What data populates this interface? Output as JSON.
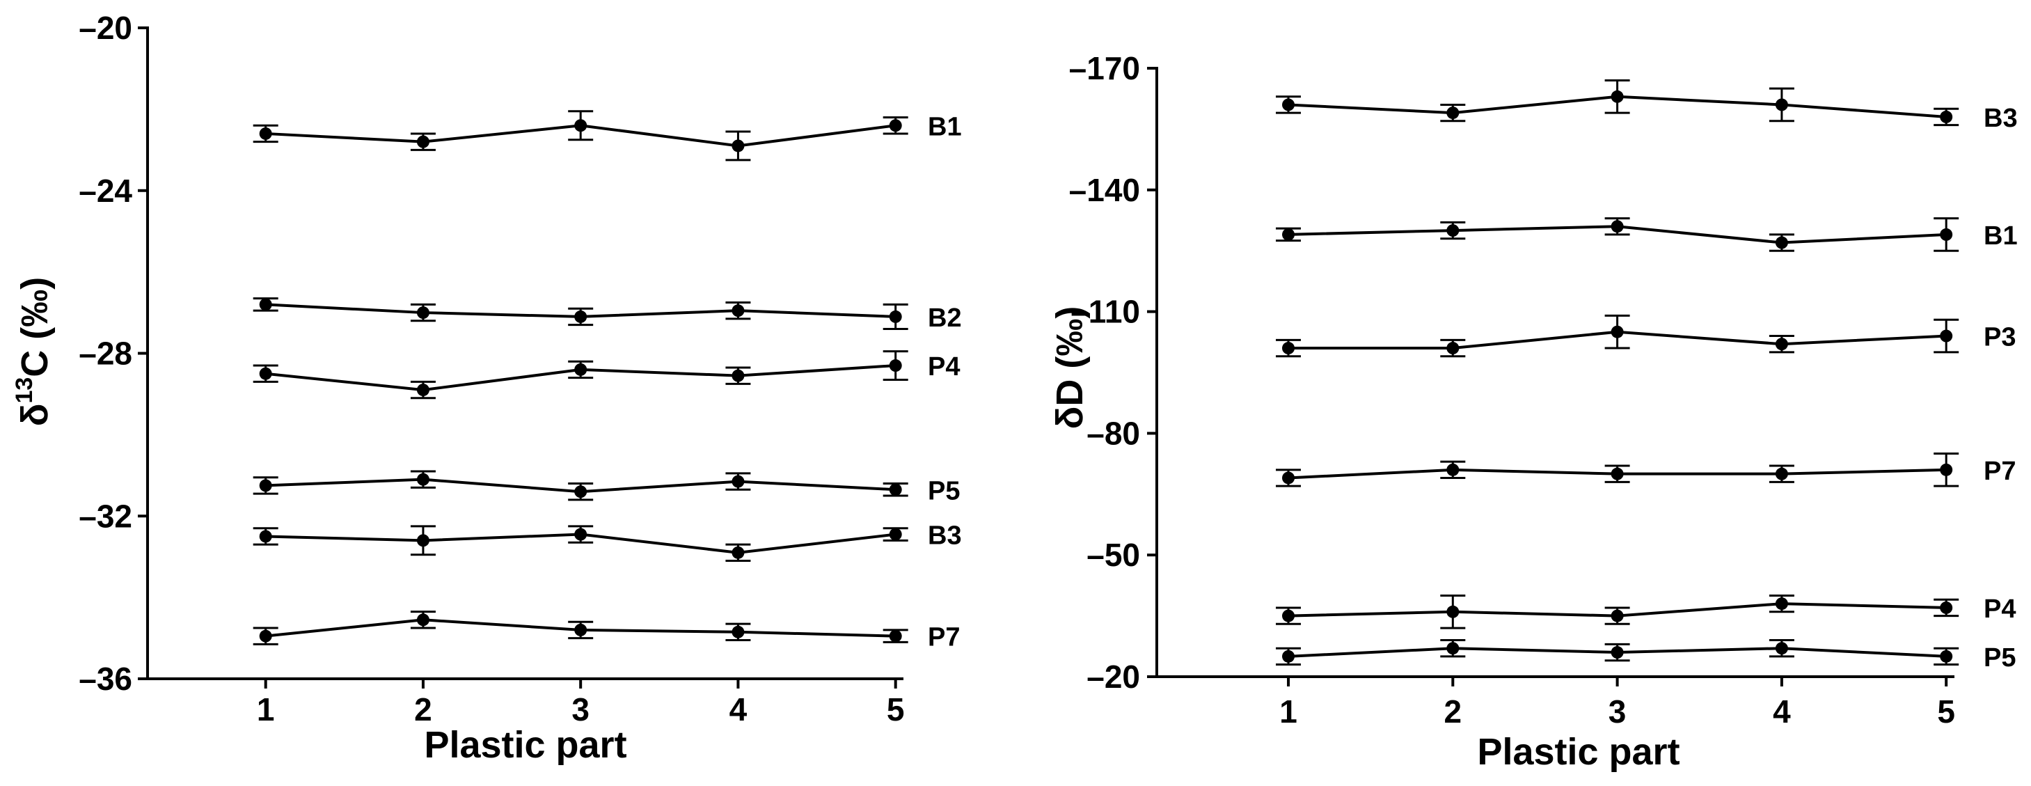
{
  "chart_data": [
    {
      "type": "line",
      "xlabel": "Plastic part",
      "ylabel_main": "δ",
      "ylabel_sup": "13",
      "ylabel_rest": "C (‰)",
      "x": [
        1,
        2,
        3,
        4,
        5
      ],
      "xticks": [
        "1",
        "2",
        "3",
        "4",
        "5"
      ],
      "xlim": [
        0.25,
        5.05
      ],
      "ylim": [
        -36,
        -20
      ],
      "yticks": [
        -20,
        -24,
        -28,
        -32,
        -36
      ],
      "ytick_labels": [
        "–20",
        "–24",
        "–28",
        "–32",
        "–36"
      ],
      "inverted_y": false,
      "error_bars": true,
      "series": [
        {
          "name": "B1",
          "values": [
            -22.6,
            -22.8,
            -22.4,
            -22.9,
            -22.4
          ],
          "errors": [
            0.2,
            0.2,
            0.35,
            0.35,
            0.2
          ]
        },
        {
          "name": "B2",
          "values": [
            -26.8,
            -27.0,
            -27.1,
            -26.95,
            -27.1
          ],
          "errors": [
            0.15,
            0.2,
            0.2,
            0.2,
            0.3
          ]
        },
        {
          "name": "P4",
          "values": [
            -28.5,
            -28.9,
            -28.4,
            -28.55,
            -28.3
          ],
          "errors": [
            0.2,
            0.2,
            0.2,
            0.2,
            0.35
          ]
        },
        {
          "name": "P5",
          "values": [
            -31.25,
            -31.1,
            -31.4,
            -31.15,
            -31.35
          ],
          "errors": [
            0.2,
            0.2,
            0.2,
            0.2,
            0.15
          ]
        },
        {
          "name": "B3",
          "values": [
            -32.5,
            -32.6,
            -32.45,
            -32.9,
            -32.45
          ],
          "errors": [
            0.2,
            0.35,
            0.2,
            0.2,
            0.15
          ]
        },
        {
          "name": "P7",
          "values": [
            -34.95,
            -34.55,
            -34.8,
            -34.85,
            -34.95
          ],
          "errors": [
            0.2,
            0.2,
            0.2,
            0.2,
            0.15
          ]
        }
      ]
    },
    {
      "type": "line",
      "xlabel": "Plastic part",
      "ylabel": "δD (‰)",
      "x": [
        1,
        2,
        3,
        4,
        5
      ],
      "xticks": [
        "1",
        "2",
        "3",
        "4",
        "5"
      ],
      "xlim": [
        0.2,
        5.05
      ],
      "ylim": [
        -170,
        -20
      ],
      "yticks": [
        -170,
        -140,
        -110,
        -80,
        -50,
        -20
      ],
      "ytick_labels": [
        "–170",
        "–140",
        "–110",
        "–80",
        "–50",
        "–20"
      ],
      "inverted_y": true,
      "error_bars": true,
      "series": [
        {
          "name": "B3",
          "values": [
            -161,
            -159,
            -163,
            -161,
            -158
          ],
          "errors": [
            2,
            2,
            4,
            4,
            2
          ]
        },
        {
          "name": "B1",
          "values": [
            -129,
            -130,
            -131,
            -127,
            -129
          ],
          "errors": [
            1.5,
            2,
            2,
            2,
            4
          ]
        },
        {
          "name": "P3",
          "values": [
            -101,
            -101,
            -105,
            -102,
            -104
          ],
          "errors": [
            2,
            2,
            4,
            2,
            4
          ]
        },
        {
          "name": "P7",
          "values": [
            -69,
            -71,
            -70,
            -70,
            -71
          ],
          "errors": [
            2,
            2,
            2,
            2,
            4
          ]
        },
        {
          "name": "P4",
          "values": [
            -35,
            -36,
            -35,
            -38,
            -37
          ],
          "errors": [
            2,
            4,
            2,
            2,
            2
          ]
        },
        {
          "name": "P5",
          "values": [
            -25,
            -27,
            -26,
            -27,
            -25
          ],
          "errors": [
            2,
            2,
            2,
            2,
            2
          ]
        }
      ]
    }
  ]
}
